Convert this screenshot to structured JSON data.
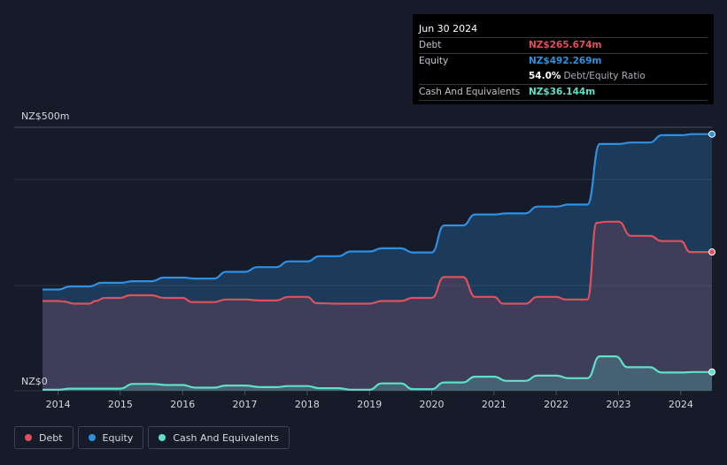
{
  "colors": {
    "debt": "#e0505c",
    "equity": "#2f8fe0",
    "cash": "#5fe0c8",
    "background": "#151b29"
  },
  "tooltip": {
    "date": "Jun 30 2024",
    "rows": [
      {
        "label": "Debt",
        "value": "NZ$265.674m"
      },
      {
        "label": "Equity",
        "value": "NZ$492.269m"
      },
      {
        "label": "",
        "value": "54.0%",
        "extra": "Debt/Equity Ratio"
      },
      {
        "label": "Cash And Equivalents",
        "value": "NZ$36.144m"
      }
    ]
  },
  "legend": {
    "debt": "Debt",
    "equity": "Equity",
    "cash": "Cash And Equivalents"
  },
  "chart_data": {
    "type": "area",
    "ylim": [
      0,
      500
    ],
    "xlim": [
      2013.75,
      2024.5
    ],
    "y_tick_labels": {
      "top": "NZ$500m",
      "bottom": "NZ$0"
    },
    "x_ticks": [
      2014,
      2015,
      2016,
      2017,
      2018,
      2019,
      2020,
      2021,
      2022,
      2023,
      2024
    ],
    "series": [
      {
        "name": "Debt",
        "points": [
          [
            2013.75,
            172
          ],
          [
            2014.0,
            172
          ],
          [
            2014.1,
            171
          ],
          [
            2014.25,
            167
          ],
          [
            2014.5,
            167
          ],
          [
            2014.6,
            172
          ],
          [
            2014.75,
            178
          ],
          [
            2015.0,
            178
          ],
          [
            2015.15,
            183
          ],
          [
            2015.5,
            183
          ],
          [
            2015.7,
            178
          ],
          [
            2016.0,
            178
          ],
          [
            2016.15,
            170
          ],
          [
            2016.5,
            170
          ],
          [
            2016.7,
            175
          ],
          [
            2017.0,
            175
          ],
          [
            2017.25,
            173
          ],
          [
            2017.5,
            173
          ],
          [
            2017.7,
            180
          ],
          [
            2018.0,
            180
          ],
          [
            2018.15,
            168
          ],
          [
            2018.5,
            167
          ],
          [
            2019.0,
            167
          ],
          [
            2019.2,
            172
          ],
          [
            2019.5,
            172
          ],
          [
            2019.7,
            178
          ],
          [
            2020.0,
            178
          ],
          [
            2020.2,
            218
          ],
          [
            2020.5,
            218
          ],
          [
            2020.7,
            180
          ],
          [
            2021.0,
            180
          ],
          [
            2021.15,
            167
          ],
          [
            2021.5,
            167
          ],
          [
            2021.7,
            180
          ],
          [
            2022.0,
            180
          ],
          [
            2022.15,
            175
          ],
          [
            2022.5,
            175
          ],
          [
            2022.65,
            322
          ],
          [
            2022.8,
            324
          ],
          [
            2023.0,
            324
          ],
          [
            2023.2,
            297
          ],
          [
            2023.5,
            297
          ],
          [
            2023.7,
            287
          ],
          [
            2024.0,
            287
          ],
          [
            2024.15,
            266
          ],
          [
            2024.5,
            266
          ]
        ]
      },
      {
        "name": "Equity",
        "points": [
          [
            2013.75,
            194
          ],
          [
            2014.0,
            194
          ],
          [
            2014.2,
            200
          ],
          [
            2014.5,
            200
          ],
          [
            2014.7,
            207
          ],
          [
            2015.0,
            207
          ],
          [
            2015.2,
            210
          ],
          [
            2015.5,
            210
          ],
          [
            2015.7,
            217
          ],
          [
            2016.0,
            217
          ],
          [
            2016.2,
            215
          ],
          [
            2016.5,
            215
          ],
          [
            2016.7,
            228
          ],
          [
            2017.0,
            228
          ],
          [
            2017.2,
            237
          ],
          [
            2017.5,
            237
          ],
          [
            2017.7,
            248
          ],
          [
            2018.0,
            248
          ],
          [
            2018.2,
            258
          ],
          [
            2018.5,
            258
          ],
          [
            2018.7,
            267
          ],
          [
            2019.0,
            267
          ],
          [
            2019.2,
            273
          ],
          [
            2019.5,
            273
          ],
          [
            2019.7,
            265
          ],
          [
            2020.0,
            265
          ],
          [
            2020.2,
            317
          ],
          [
            2020.5,
            317
          ],
          [
            2020.7,
            338
          ],
          [
            2021.0,
            338
          ],
          [
            2021.2,
            340
          ],
          [
            2021.5,
            340
          ],
          [
            2021.7,
            353
          ],
          [
            2022.0,
            353
          ],
          [
            2022.2,
            357
          ],
          [
            2022.5,
            357
          ],
          [
            2022.7,
            473
          ],
          [
            2023.0,
            473
          ],
          [
            2023.2,
            476
          ],
          [
            2023.5,
            476
          ],
          [
            2023.7,
            490
          ],
          [
            2024.0,
            490
          ],
          [
            2024.2,
            492
          ],
          [
            2024.5,
            492
          ]
        ]
      },
      {
        "name": "Cash And Equivalents",
        "points": [
          [
            2013.75,
            2
          ],
          [
            2014.0,
            2
          ],
          [
            2014.2,
            4
          ],
          [
            2014.5,
            4
          ],
          [
            2015.0,
            4
          ],
          [
            2015.2,
            13
          ],
          [
            2015.5,
            13
          ],
          [
            2015.75,
            11
          ],
          [
            2016.0,
            11
          ],
          [
            2016.2,
            6
          ],
          [
            2016.5,
            6
          ],
          [
            2016.7,
            10
          ],
          [
            2017.0,
            10
          ],
          [
            2017.25,
            7
          ],
          [
            2017.5,
            7
          ],
          [
            2017.7,
            9
          ],
          [
            2018.0,
            9
          ],
          [
            2018.2,
            5
          ],
          [
            2018.5,
            5
          ],
          [
            2018.7,
            2
          ],
          [
            2019.0,
            2
          ],
          [
            2019.2,
            14
          ],
          [
            2019.5,
            14
          ],
          [
            2019.7,
            3
          ],
          [
            2020.0,
            3
          ],
          [
            2020.2,
            16
          ],
          [
            2020.5,
            16
          ],
          [
            2020.7,
            27
          ],
          [
            2021.0,
            27
          ],
          [
            2021.2,
            19
          ],
          [
            2021.5,
            19
          ],
          [
            2021.7,
            29
          ],
          [
            2022.0,
            29
          ],
          [
            2022.2,
            24
          ],
          [
            2022.5,
            24
          ],
          [
            2022.7,
            66
          ],
          [
            2022.95,
            66
          ],
          [
            2023.15,
            45
          ],
          [
            2023.5,
            45
          ],
          [
            2023.7,
            35
          ],
          [
            2024.0,
            35
          ],
          [
            2024.2,
            36
          ],
          [
            2024.5,
            36
          ]
        ]
      }
    ]
  }
}
